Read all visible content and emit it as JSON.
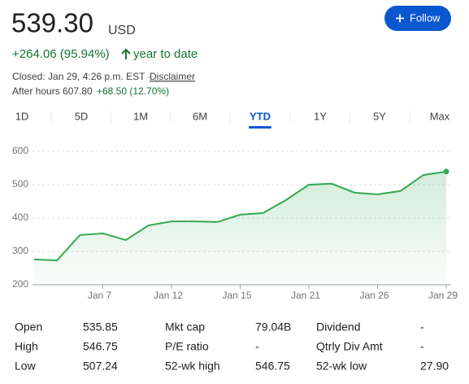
{
  "header": {
    "price": "539.30",
    "currency": "USD",
    "change": "+264.06 (95.94%)",
    "period": "year to date",
    "closed": "Closed: Jan 29, 4:26 p.m. EST ·",
    "disclaimer": "Disclaimer",
    "after_hours": "After hours 607.80",
    "after_hours_change": "+68.50 (12.70%)",
    "follow": "Follow"
  },
  "tabs": [
    "1D",
    "5D",
    "1M",
    "6M",
    "YTD",
    "1Y",
    "5Y",
    "Max"
  ],
  "active_tab": 4,
  "chart_data": {
    "type": "line",
    "categories": [
      null,
      null,
      null,
      "Jan 7",
      null,
      null,
      "Jan 12",
      null,
      null,
      "Jan 15",
      null,
      null,
      "Jan 21",
      null,
      null,
      "Jan 26",
      null,
      null,
      "Jan 29"
    ],
    "series": [
      {
        "color": "#34a853",
        "values": [
          276,
          273,
          349,
          354,
          334,
          378,
          390,
          390,
          388,
          410,
          415,
          454,
          500,
          503,
          476,
          471,
          481,
          529,
          539.3
        ]
      }
    ],
    "ylim": [
      200,
      600
    ],
    "yticks": [
      200,
      300,
      400,
      500,
      600
    ],
    "grid": true
  },
  "stats": [
    [
      "Open",
      "535.85",
      "Mkt cap",
      "79.04B",
      "Dividend",
      "-"
    ],
    [
      "High",
      "546.75",
      "P/E ratio",
      "-",
      "Qtrly Div Amt",
      "-"
    ],
    [
      "Low",
      "507.24",
      "52-wk high",
      "546.75",
      "52-wk low",
      "27.90"
    ]
  ]
}
